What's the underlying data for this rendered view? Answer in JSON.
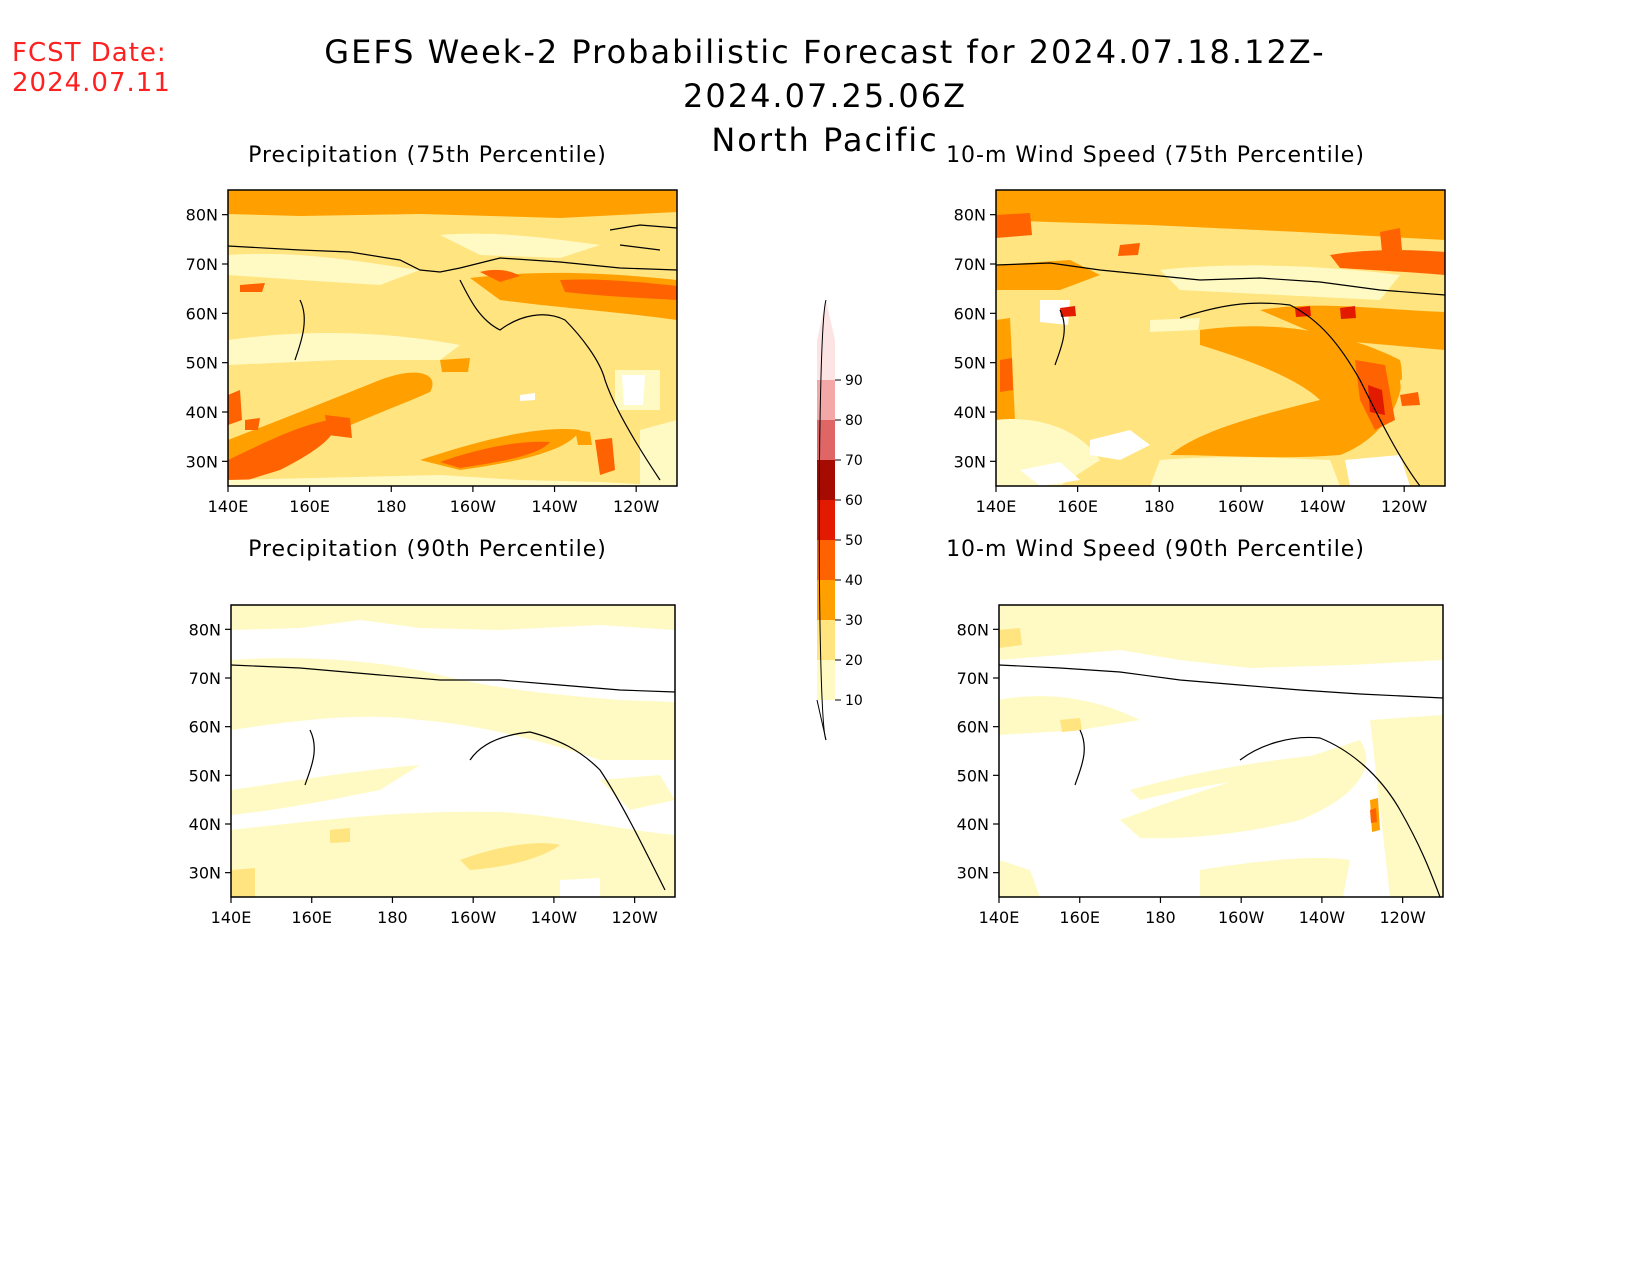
{
  "header": {
    "fcst_label": "FCST Date:",
    "fcst_date": "2024.07.11",
    "title_line1": "GEFS Week-2 Probabilistic Forecast for 2024.07.18.12Z-2024.07.25.06Z",
    "title_line2": "North Pacific"
  },
  "panels": [
    {
      "title": "Precipitation (75th Percentile)",
      "field": "precip",
      "percentile": 75
    },
    {
      "title": "10-m Wind Speed (75th Percentile)",
      "field": "wind",
      "percentile": 75
    },
    {
      "title": "Precipitation (90th Percentile)",
      "field": "precip",
      "percentile": 90
    },
    {
      "title": "10-m Wind Speed (90th Percentile)",
      "field": "wind",
      "percentile": 90
    }
  ],
  "axes": {
    "lat_labels": [
      "80N",
      "70N",
      "60N",
      "50N",
      "40N",
      "30N"
    ],
    "lon_labels": [
      "140E",
      "160E",
      "180",
      "160W",
      "140W",
      "120W"
    ]
  },
  "colorbar": {
    "levels": [
      "10",
      "20",
      "30",
      "40",
      "50",
      "60",
      "70",
      "80",
      "90"
    ],
    "colors": [
      "#fffac4",
      "#ffe480",
      "#ffa000",
      "#ff6200",
      "#e21b00",
      "#a50b00",
      "#e06666",
      "#f4a7a7",
      "#fde4e4"
    ]
  }
}
